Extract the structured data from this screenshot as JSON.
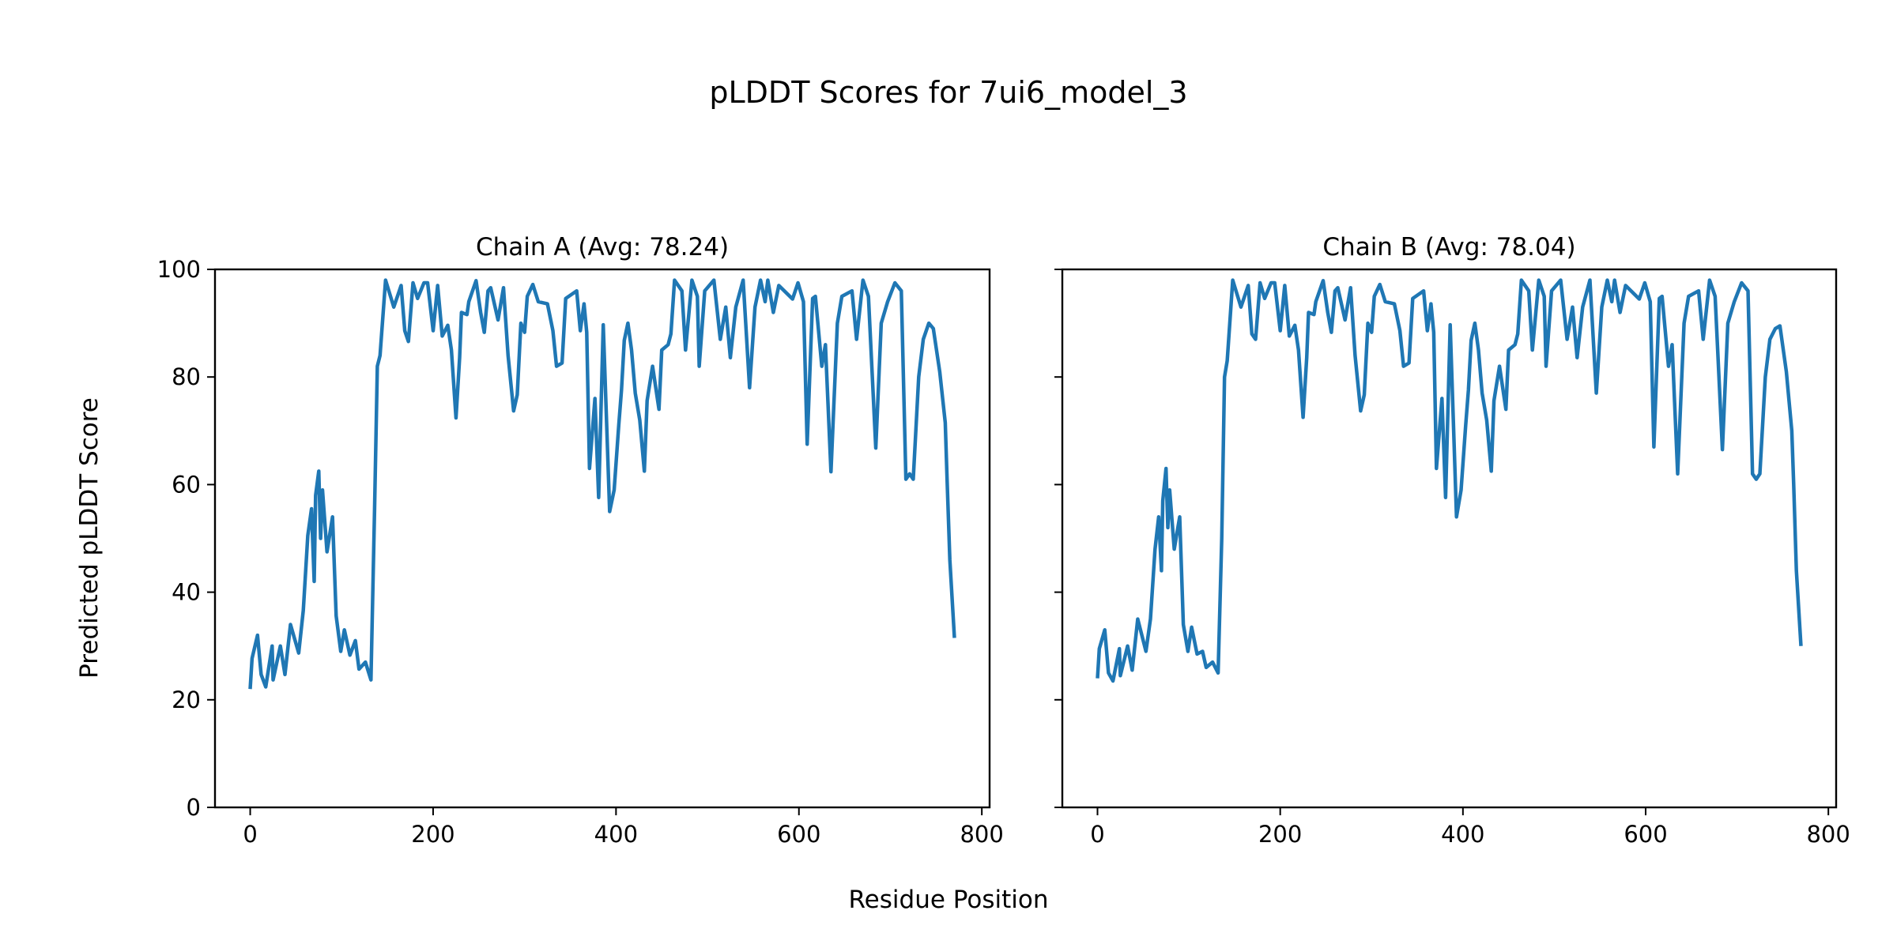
{
  "chart_data": {
    "type": "line",
    "title": "pLDDT Scores for 7ui6_model_3",
    "xlabel": "Residue Position",
    "ylabel": "Predicted pLDDT Score",
    "xlim": [
      -38.5,
      808.5
    ],
    "ylim": [
      0,
      100
    ],
    "xticks": [
      0,
      200,
      400,
      600,
      800
    ],
    "yticks": [
      0,
      20,
      40,
      60,
      80,
      100
    ],
    "grid": false,
    "line_color": "#1f77b4",
    "panels": [
      {
        "title": "Chain A (Avg: 78.24)",
        "points": [
          [
            0,
            22
          ],
          [
            2,
            27.7
          ],
          [
            8,
            32
          ],
          [
            12,
            24.7
          ],
          [
            17,
            22.4
          ],
          [
            24,
            30
          ],
          [
            25,
            23.7
          ],
          [
            33,
            30
          ],
          [
            38,
            24.7
          ],
          [
            44,
            34
          ],
          [
            53,
            28.7
          ],
          [
            58,
            36.6
          ],
          [
            63,
            50.5
          ],
          [
            67,
            55.5
          ],
          [
            70,
            42
          ],
          [
            71.5,
            58
          ],
          [
            75,
            62.5
          ],
          [
            77,
            50
          ],
          [
            79,
            59
          ],
          [
            84,
            47.5
          ],
          [
            90,
            54
          ],
          [
            94,
            35.6
          ],
          [
            99,
            29
          ],
          [
            103,
            33
          ],
          [
            109,
            28.3
          ],
          [
            115,
            31
          ],
          [
            119,
            25.7
          ],
          [
            126,
            27
          ],
          [
            132,
            23.7
          ],
          [
            136,
            55.5
          ],
          [
            139,
            82
          ],
          [
            142,
            84
          ],
          [
            148,
            98
          ],
          [
            157,
            93
          ],
          [
            165,
            97
          ],
          [
            169,
            88.6
          ],
          [
            173,
            86.6
          ],
          [
            178,
            97.5
          ],
          [
            183,
            94.6
          ],
          [
            190,
            97.5
          ],
          [
            194,
            97.5
          ],
          [
            200,
            88.6
          ],
          [
            205,
            97
          ],
          [
            210,
            87.6
          ],
          [
            216,
            89.6
          ],
          [
            220,
            85
          ],
          [
            225,
            72.4
          ],
          [
            229,
            83.6
          ],
          [
            231,
            92
          ],
          [
            237,
            91.6
          ],
          [
            239,
            94
          ],
          [
            247,
            97.9
          ],
          [
            252,
            92
          ],
          [
            256,
            88.3
          ],
          [
            260,
            96
          ],
          [
            263,
            96.6
          ],
          [
            271,
            90.6
          ],
          [
            277,
            96.6
          ],
          [
            282,
            84
          ],
          [
            288,
            73.7
          ],
          [
            292,
            76.7
          ],
          [
            296,
            90
          ],
          [
            300,
            88.3
          ],
          [
            303,
            95
          ],
          [
            309,
            97.2
          ],
          [
            315,
            94
          ],
          [
            325,
            93.6
          ],
          [
            331,
            88.6
          ],
          [
            335,
            82
          ],
          [
            341,
            82.6
          ],
          [
            345,
            94.6
          ],
          [
            357,
            96
          ],
          [
            361,
            88.6
          ],
          [
            365,
            93.6
          ],
          [
            368,
            88.3
          ],
          [
            371,
            63
          ],
          [
            377,
            76
          ],
          [
            381,
            57.6
          ],
          [
            386,
            89.7
          ],
          [
            393,
            55
          ],
          [
            398,
            59
          ],
          [
            403,
            71
          ],
          [
            406,
            77.6
          ],
          [
            409,
            86.8
          ],
          [
            413,
            90
          ],
          [
            417,
            85
          ],
          [
            421,
            77
          ],
          [
            426,
            72
          ],
          [
            431,
            62.5
          ],
          [
            434,
            75.6
          ],
          [
            440,
            82
          ],
          [
            447,
            74
          ],
          [
            450,
            85
          ],
          [
            457,
            86
          ],
          [
            460,
            88
          ],
          [
            464,
            98
          ],
          [
            472,
            96
          ],
          [
            476,
            85
          ],
          [
            483,
            98
          ],
          [
            489,
            95
          ],
          [
            491,
            82
          ],
          [
            497,
            96
          ],
          [
            507,
            98
          ],
          [
            514,
            87
          ],
          [
            520,
            93
          ],
          [
            525,
            83.6
          ],
          [
            531,
            93
          ],
          [
            539,
            98
          ],
          [
            546,
            78
          ],
          [
            552,
            93
          ],
          [
            558,
            98
          ],
          [
            563,
            94
          ],
          [
            566,
            98
          ],
          [
            572,
            92
          ],
          [
            578,
            97
          ],
          [
            593,
            94.5
          ],
          [
            599,
            97.5
          ],
          [
            605,
            94
          ],
          [
            609,
            67.5
          ],
          [
            615,
            94.6
          ],
          [
            618,
            95
          ],
          [
            625,
            82
          ],
          [
            629,
            86
          ],
          [
            635,
            62.4
          ],
          [
            642,
            90
          ],
          [
            647,
            95
          ],
          [
            658,
            96
          ],
          [
            663,
            87
          ],
          [
            670,
            98
          ],
          [
            676,
            95
          ],
          [
            684,
            66.8
          ],
          [
            690,
            90
          ],
          [
            697,
            94
          ],
          [
            705,
            97.5
          ],
          [
            712,
            96
          ],
          [
            717,
            61
          ],
          [
            721,
            62
          ],
          [
            725,
            61
          ],
          [
            731,
            80
          ],
          [
            736,
            87
          ],
          [
            742,
            90
          ],
          [
            747,
            89
          ],
          [
            754,
            81
          ],
          [
            760,
            71.5
          ],
          [
            762,
            61
          ],
          [
            765,
            46
          ],
          [
            770,
            31.5
          ]
        ]
      },
      {
        "title": "Chain B (Avg: 78.04)",
        "points": [
          [
            0,
            24
          ],
          [
            2,
            29.5
          ],
          [
            8,
            33
          ],
          [
            12,
            25
          ],
          [
            17,
            23.5
          ],
          [
            24,
            29.5
          ],
          [
            25,
            24.5
          ],
          [
            33,
            30
          ],
          [
            38,
            25.5
          ],
          [
            44,
            35
          ],
          [
            53,
            29
          ],
          [
            58,
            35
          ],
          [
            63,
            48
          ],
          [
            67,
            54
          ],
          [
            70,
            44
          ],
          [
            71.5,
            57
          ],
          [
            75,
            63
          ],
          [
            77,
            52
          ],
          [
            79,
            59
          ],
          [
            84,
            48
          ],
          [
            90,
            54
          ],
          [
            94,
            34
          ],
          [
            99,
            29
          ],
          [
            103,
            33.5
          ],
          [
            109,
            28.5
          ],
          [
            115,
            29
          ],
          [
            119,
            26
          ],
          [
            126,
            27
          ],
          [
            132,
            25
          ],
          [
            136,
            50
          ],
          [
            139,
            80
          ],
          [
            142,
            83
          ],
          [
            148,
            98
          ],
          [
            157,
            93
          ],
          [
            165,
            97
          ],
          [
            169,
            88
          ],
          [
            173,
            87
          ],
          [
            178,
            97.5
          ],
          [
            183,
            94.6
          ],
          [
            190,
            97.5
          ],
          [
            194,
            97.5
          ],
          [
            200,
            88.6
          ],
          [
            205,
            97
          ],
          [
            210,
            87.6
          ],
          [
            216,
            89.6
          ],
          [
            220,
            85
          ],
          [
            225,
            72.5
          ],
          [
            229,
            83.6
          ],
          [
            231,
            92
          ],
          [
            237,
            91.6
          ],
          [
            239,
            94
          ],
          [
            247,
            97.9
          ],
          [
            252,
            92
          ],
          [
            256,
            88.3
          ],
          [
            260,
            96
          ],
          [
            263,
            96.6
          ],
          [
            271,
            90.6
          ],
          [
            277,
            96.6
          ],
          [
            282,
            84
          ],
          [
            288,
            73.7
          ],
          [
            292,
            76.7
          ],
          [
            296,
            90
          ],
          [
            300,
            88.3
          ],
          [
            303,
            95
          ],
          [
            309,
            97.2
          ],
          [
            315,
            94
          ],
          [
            325,
            93.6
          ],
          [
            331,
            88.6
          ],
          [
            335,
            82
          ],
          [
            341,
            82.6
          ],
          [
            345,
            94.6
          ],
          [
            357,
            96
          ],
          [
            361,
            88.6
          ],
          [
            365,
            93.6
          ],
          [
            368,
            88.3
          ],
          [
            371,
            63
          ],
          [
            377,
            76
          ],
          [
            381,
            57.6
          ],
          [
            386,
            89.7
          ],
          [
            393,
            54
          ],
          [
            398,
            59
          ],
          [
            403,
            71
          ],
          [
            406,
            77.6
          ],
          [
            409,
            86.8
          ],
          [
            413,
            90
          ],
          [
            417,
            85
          ],
          [
            421,
            77
          ],
          [
            426,
            72
          ],
          [
            431,
            62.5
          ],
          [
            434,
            75.6
          ],
          [
            440,
            82
          ],
          [
            447,
            74
          ],
          [
            450,
            85
          ],
          [
            457,
            86
          ],
          [
            460,
            88
          ],
          [
            464,
            98
          ],
          [
            472,
            96
          ],
          [
            476,
            85
          ],
          [
            483,
            98
          ],
          [
            489,
            95
          ],
          [
            491,
            82
          ],
          [
            497,
            96
          ],
          [
            507,
            98
          ],
          [
            514,
            87
          ],
          [
            520,
            93
          ],
          [
            525,
            83.6
          ],
          [
            531,
            93
          ],
          [
            539,
            98
          ],
          [
            546,
            77
          ],
          [
            552,
            93
          ],
          [
            558,
            98
          ],
          [
            563,
            94
          ],
          [
            566,
            98
          ],
          [
            572,
            92
          ],
          [
            578,
            97
          ],
          [
            593,
            94.5
          ],
          [
            599,
            97.5
          ],
          [
            605,
            94
          ],
          [
            609,
            67
          ],
          [
            615,
            94.6
          ],
          [
            618,
            95
          ],
          [
            625,
            82
          ],
          [
            629,
            86
          ],
          [
            635,
            62
          ],
          [
            642,
            90
          ],
          [
            647,
            95
          ],
          [
            658,
            96
          ],
          [
            663,
            87
          ],
          [
            670,
            98
          ],
          [
            676,
            95
          ],
          [
            684,
            66.5
          ],
          [
            690,
            90
          ],
          [
            697,
            94
          ],
          [
            705,
            97.5
          ],
          [
            712,
            96
          ],
          [
            717,
            62
          ],
          [
            721,
            61
          ],
          [
            725,
            62
          ],
          [
            731,
            80
          ],
          [
            736,
            87
          ],
          [
            742,
            89
          ],
          [
            747,
            89.5
          ],
          [
            754,
            81
          ],
          [
            760,
            70
          ],
          [
            762,
            60
          ],
          [
            765,
            44
          ],
          [
            770,
            30
          ]
        ]
      }
    ]
  }
}
